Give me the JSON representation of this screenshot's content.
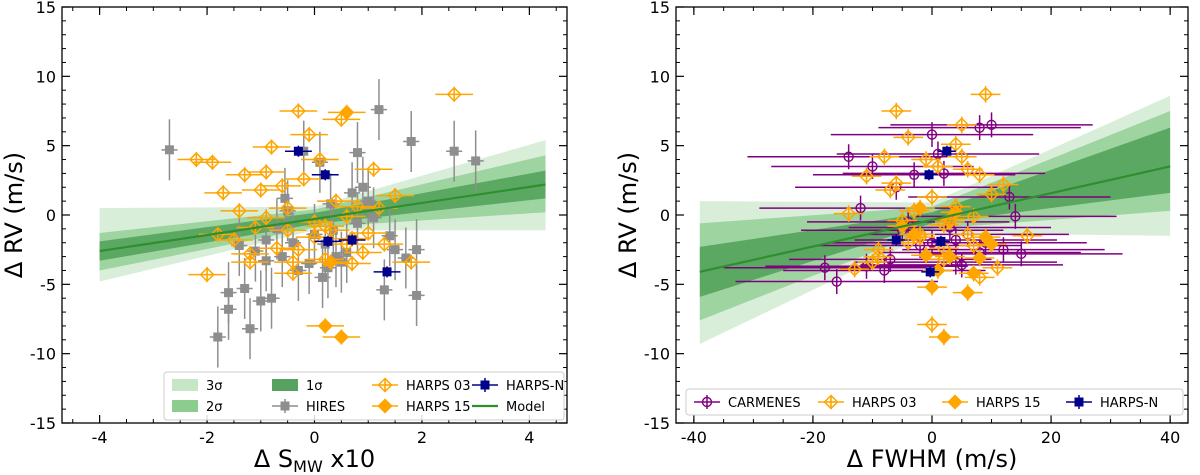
{
  "chart_data": [
    {
      "type": "scatter",
      "id": "left",
      "title": "",
      "xlabel": "Δ S",
      "xlabel_sub": "MW",
      "xlabel_suffix": " x10",
      "ylabel": "Δ RV (m/s)",
      "xlim": [
        -4.7,
        4.7
      ],
      "ylim": [
        -15,
        15
      ],
      "xticks": [
        -4,
        -2,
        0,
        2,
        4
      ],
      "xtick_labels": [
        "-4",
        "-2",
        "0",
        "2",
        "4"
      ],
      "yticks": [
        -15,
        -10,
        -5,
        0,
        5,
        10,
        15
      ],
      "ytick_labels": [
        "-15",
        "-10",
        "-5",
        "0",
        "5",
        "10",
        "15"
      ],
      "model": {
        "x": [
          -4,
          4.3
        ],
        "y": [
          -2.6,
          2.2
        ]
      },
      "bands": {
        "x": [
          -4,
          0,
          4.3
        ],
        "s1": [
          [
            -3.3,
            -1.9
          ],
          [
            -0.65,
            0.15
          ],
          [
            1.2,
            3.2
          ]
        ],
        "s2": [
          [
            -4.0,
            -1.3
          ],
          [
            -0.9,
            0.4
          ],
          [
            0.2,
            4.3
          ]
        ],
        "s3": [
          [
            -4.8,
            0.5
          ],
          [
            -1.1,
            0.6
          ],
          [
            -1.1,
            5.4
          ]
        ]
      },
      "series": [
        {
          "name": "HIRES",
          "color": "#8e8e8e",
          "marker": "square",
          "x": [
            -2.7,
            -1.8,
            -1.6,
            -1.4,
            -1.3,
            -1.2,
            -1.1,
            -1.0,
            -0.9,
            -0.8,
            -0.7,
            -0.6,
            -0.5,
            -0.4,
            -0.3,
            -0.2,
            -0.1,
            0.0,
            0.1,
            0.2,
            0.3,
            0.4,
            0.5,
            0.6,
            0.7,
            0.8,
            0.9,
            1.0,
            1.1,
            1.2,
            1.3,
            1.4,
            1.5,
            1.7,
            1.8,
            1.9,
            2.6,
            3.0,
            0.35,
            -0.55,
            -1.6,
            0.25,
            0.15,
            -0.9,
            0.8,
            1.9
          ],
          "y": [
            4.7,
            -8.8,
            -6.8,
            -2.2,
            -5.3,
            -8.2,
            -2.6,
            -6.2,
            -3.3,
            -6.0,
            -1.0,
            -3.0,
            0.3,
            -2.0,
            -4.0,
            4.6,
            -3.5,
            -1.4,
            3.8,
            -2.1,
            0.8,
            -3.0,
            -3.4,
            -2.7,
            1.6,
            4.5,
            2.0,
            1.0,
            -0.2,
            7.6,
            -5.4,
            -1.5,
            -2.5,
            -3.1,
            5.3,
            -5.8,
            4.6,
            3.9,
            -1.1,
            1.2,
            -5.6,
            -3.8,
            -4.5,
            -1.8,
            -0.6,
            -2.5
          ],
          "xerr": 0.15,
          "yerr": 2.2
        },
        {
          "name": "HARPS 03",
          "color": "#ffa500",
          "marker": "open-diamond",
          "x": [
            -2.2,
            -1.9,
            -1.7,
            -1.5,
            -1.4,
            -1.3,
            -1.2,
            -1.1,
            -1.0,
            -0.9,
            -0.8,
            -0.7,
            -0.6,
            -0.5,
            -0.4,
            -0.3,
            -0.2,
            -0.1,
            0.0,
            0.1,
            0.2,
            0.3,
            0.4,
            0.5,
            0.6,
            0.7,
            0.8,
            0.9,
            1.0,
            1.1,
            1.2,
            1.3,
            1.5,
            -1.8,
            -0.4,
            0.2,
            0.7,
            -1.2,
            2.6,
            -0.9,
            -0.5,
            1.8,
            -0.3,
            0.6,
            -2.0,
            0.0
          ],
          "y": [
            4.0,
            3.8,
            1.6,
            -1.8,
            0.3,
            2.9,
            -3.4,
            -0.9,
            1.8,
            3.1,
            4.9,
            -2.4,
            2.1,
            -1.1,
            -4.2,
            7.5,
            2.6,
            5.8,
            -0.5,
            4.0,
            -3.2,
            -1.1,
            1.0,
            6.9,
            -2.1,
            -1.7,
            0.6,
            -2.7,
            -1.3,
            3.3,
            0.5,
            -2.1,
            1.4,
            -1.4,
            -3.4,
            -0.8,
            -3.5,
            -2.8,
            8.7,
            -0.2,
            0.5,
            -3.4,
            -2.5,
            -0.1,
            -4.3,
            -1.6
          ],
          "xerr": 0.35,
          "yerr": 0.55
        },
        {
          "name": "HARPS 15",
          "color": "#ffa500",
          "marker": "filled-diamond",
          "x": [
            0.2,
            0.5,
            0.6,
            0.3
          ],
          "y": [
            -8.0,
            -8.8,
            7.4,
            -3.4
          ],
          "xerr": 0.35,
          "yerr": 0.55
        },
        {
          "name": "HARPS-N",
          "color": "#00008b",
          "marker": "square",
          "x": [
            -0.3,
            0.2,
            0.25,
            0.7,
            1.35
          ],
          "y": [
            4.6,
            2.9,
            -1.9,
            -1.8,
            -4.1
          ],
          "xerr": 0.25,
          "yerr": 0.4
        }
      ],
      "legend": {
        "position": "lower-center",
        "entries": [
          {
            "label": "3σ",
            "kind": "band3"
          },
          {
            "label": "1σ",
            "kind": "band1"
          },
          {
            "label": "HARPS 03",
            "kind": "harps03"
          },
          {
            "label": "HARPS-N",
            "kind": "harpsn"
          },
          {
            "label": "2σ",
            "kind": "band2"
          },
          {
            "label": "HIRES",
            "kind": "hires"
          },
          {
            "label": "HARPS 15",
            "kind": "harps15"
          },
          {
            "label": "Model",
            "kind": "model"
          }
        ]
      }
    },
    {
      "type": "scatter",
      "id": "right",
      "title": "",
      "xlabel": "Δ FWHM (m/s)",
      "ylabel": "Δ RV (m/s)",
      "xlim": [
        -43,
        43
      ],
      "ylim": [
        -15,
        15
      ],
      "xticks": [
        -40,
        -20,
        0,
        20,
        40
      ],
      "xtick_labels": [
        "-40",
        "-20",
        "0",
        "20",
        "40"
      ],
      "yticks": [
        -15,
        -10,
        -5,
        0,
        5,
        10,
        15
      ],
      "ytick_labels": [
        "-15",
        "-10",
        "-5",
        "0",
        "5",
        "10",
        "15"
      ],
      "model": {
        "x": [
          -39,
          40
        ],
        "y": [
          -4.1,
          3.5
        ]
      },
      "bands": {
        "x": [
          -39,
          0,
          40
        ],
        "s1": [
          [
            -5.9,
            -2.3
          ],
          [
            -0.6,
            0.2
          ],
          [
            1.6,
            6.3
          ]
        ],
        "s2": [
          [
            -7.6,
            -0.6
          ],
          [
            -1.0,
            0.6
          ],
          [
            0.3,
            7.5
          ]
        ],
        "s3": [
          [
            -9.3,
            1.0
          ],
          [
            -1.3,
            0.9
          ],
          [
            -1.5,
            8.6
          ]
        ]
      },
      "series": [
        {
          "name": "CARMENES",
          "color": "#800080",
          "marker": "open-circle",
          "x": [
            -14,
            -10,
            -6,
            -2,
            0,
            2,
            4,
            6,
            8,
            10,
            -12,
            -8,
            -4,
            0,
            4,
            8,
            12,
            14,
            -16,
            -3,
            1,
            9,
            13,
            -18,
            -11,
            5,
            -7,
            15,
            -5,
            3
          ],
          "y": [
            4.2,
            3.5,
            2.0,
            -2.2,
            5.8,
            3.0,
            -3.4,
            -1.4,
            6.3,
            6.5,
            0.5,
            -4.0,
            -0.5,
            -2.0,
            -1.8,
            -2.7,
            -2.5,
            -0.1,
            -4.8,
            2.9,
            4.4,
            -2.0,
            1.3,
            -3.8,
            -3.7,
            -3.6,
            -3.2,
            -2.8,
            -1.1,
            -0.9
          ],
          "xerr": 17,
          "yerr": 0.9
        },
        {
          "name": "HARPS 03",
          "color": "#ffa500",
          "marker": "open-diamond",
          "x": [
            -13,
            -11,
            -10,
            -9,
            -8,
            -7,
            -6,
            -5,
            -4,
            -3,
            -2,
            -1,
            0,
            1,
            2,
            3,
            4,
            5,
            6,
            7,
            8,
            9,
            10,
            11,
            12,
            -4,
            -2,
            0,
            2,
            4,
            6,
            8,
            -9,
            -6,
            3,
            7,
            16,
            -14,
            2,
            5
          ],
          "y": [
            -3.9,
            2.8,
            -3.4,
            -2.5,
            4.2,
            1.8,
            7.5,
            -0.4,
            5.6,
            0.3,
            -1.4,
            4.0,
            -7.9,
            3.5,
            -3.2,
            -0.5,
            5.1,
            6.5,
            3.3,
            -2.2,
            2.9,
            8.7,
            1.5,
            -3.8,
            2.2,
            -2.0,
            -1.6,
            1.3,
            -2.4,
            0.6,
            -1.4,
            -4.5,
            -3.0,
            2.3,
            -0.3,
            -0.1,
            -1.5,
            0.1,
            -0.7,
            4.2
          ],
          "xerr": 2.5,
          "yerr": 0.6
        },
        {
          "name": "HARPS 15",
          "color": "#ffa500",
          "marker": "filled-diamond",
          "x": [
            -3,
            -2,
            2,
            6,
            7,
            9,
            3,
            -5,
            0,
            -1,
            4,
            8,
            10,
            1
          ],
          "y": [
            -1.4,
            0.5,
            -8.8,
            -5.6,
            -4.2,
            -1.6,
            -3.0,
            -0.8,
            -5.2,
            -2.9,
            0.2,
            -3.1,
            -2.1,
            -4.0
          ],
          "xerr": 2.5,
          "yerr": 0.6
        },
        {
          "name": "HARPS-N",
          "color": "#00008b",
          "marker": "square",
          "x": [
            -6,
            -0.5,
            1.5,
            2.5,
            -0.3
          ],
          "y": [
            -1.8,
            2.9,
            -1.9,
            4.6,
            -4.1
          ],
          "xerr": 1.5,
          "yerr": 0.4
        }
      ],
      "legend": {
        "position": "lower-center",
        "entries": [
          {
            "label": "CARMENES",
            "kind": "carmenes"
          },
          {
            "label": "HARPS 03",
            "kind": "harps03"
          },
          {
            "label": "HARPS 15",
            "kind": "harps15"
          },
          {
            "label": "HARPS-N",
            "kind": "harpsn"
          }
        ]
      }
    }
  ],
  "colors": {
    "band1": "#2e8b3a",
    "band2": "#6fbf73",
    "band3": "#b8e0b8",
    "model": "#2f8f2f"
  }
}
